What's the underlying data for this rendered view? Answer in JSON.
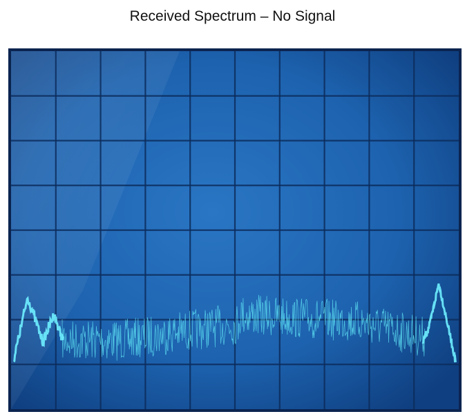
{
  "title": "Received Spectrum – No Signal"
}
